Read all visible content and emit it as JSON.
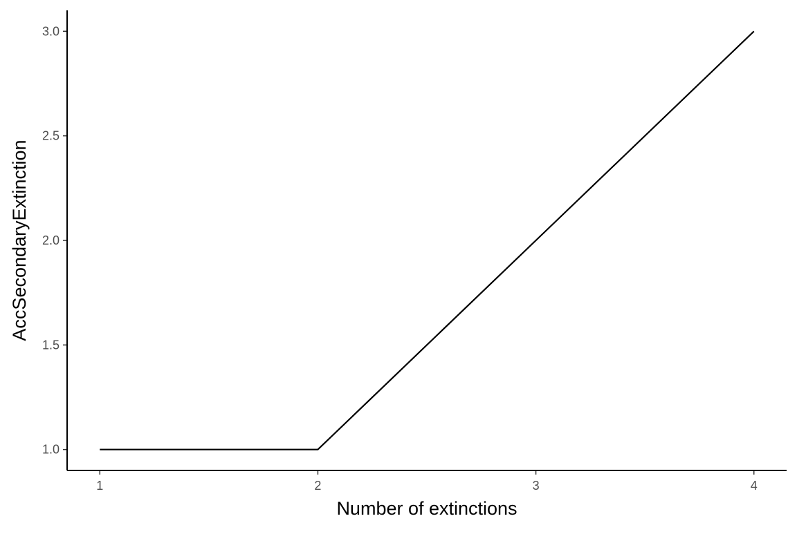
{
  "chart_data": {
    "type": "line",
    "x": [
      1,
      2,
      3,
      4
    ],
    "series": [
      {
        "values": [
          1.0,
          1.0,
          2.0,
          3.0
        ]
      }
    ],
    "xlabel": "Number of extinctions",
    "ylabel": "AccSecondaryExtinction",
    "x_ticks": [
      "1",
      "2",
      "3",
      "4"
    ],
    "y_ticks": [
      "1.0",
      "1.5",
      "2.0",
      "2.5",
      "3.0"
    ],
    "xlim": [
      0.85,
      4.15
    ],
    "ylim": [
      0.9,
      3.1
    ],
    "grid": false,
    "line_color": "#000000",
    "axis_color": "#000000",
    "tick_label_color": "#4d4d4d"
  }
}
